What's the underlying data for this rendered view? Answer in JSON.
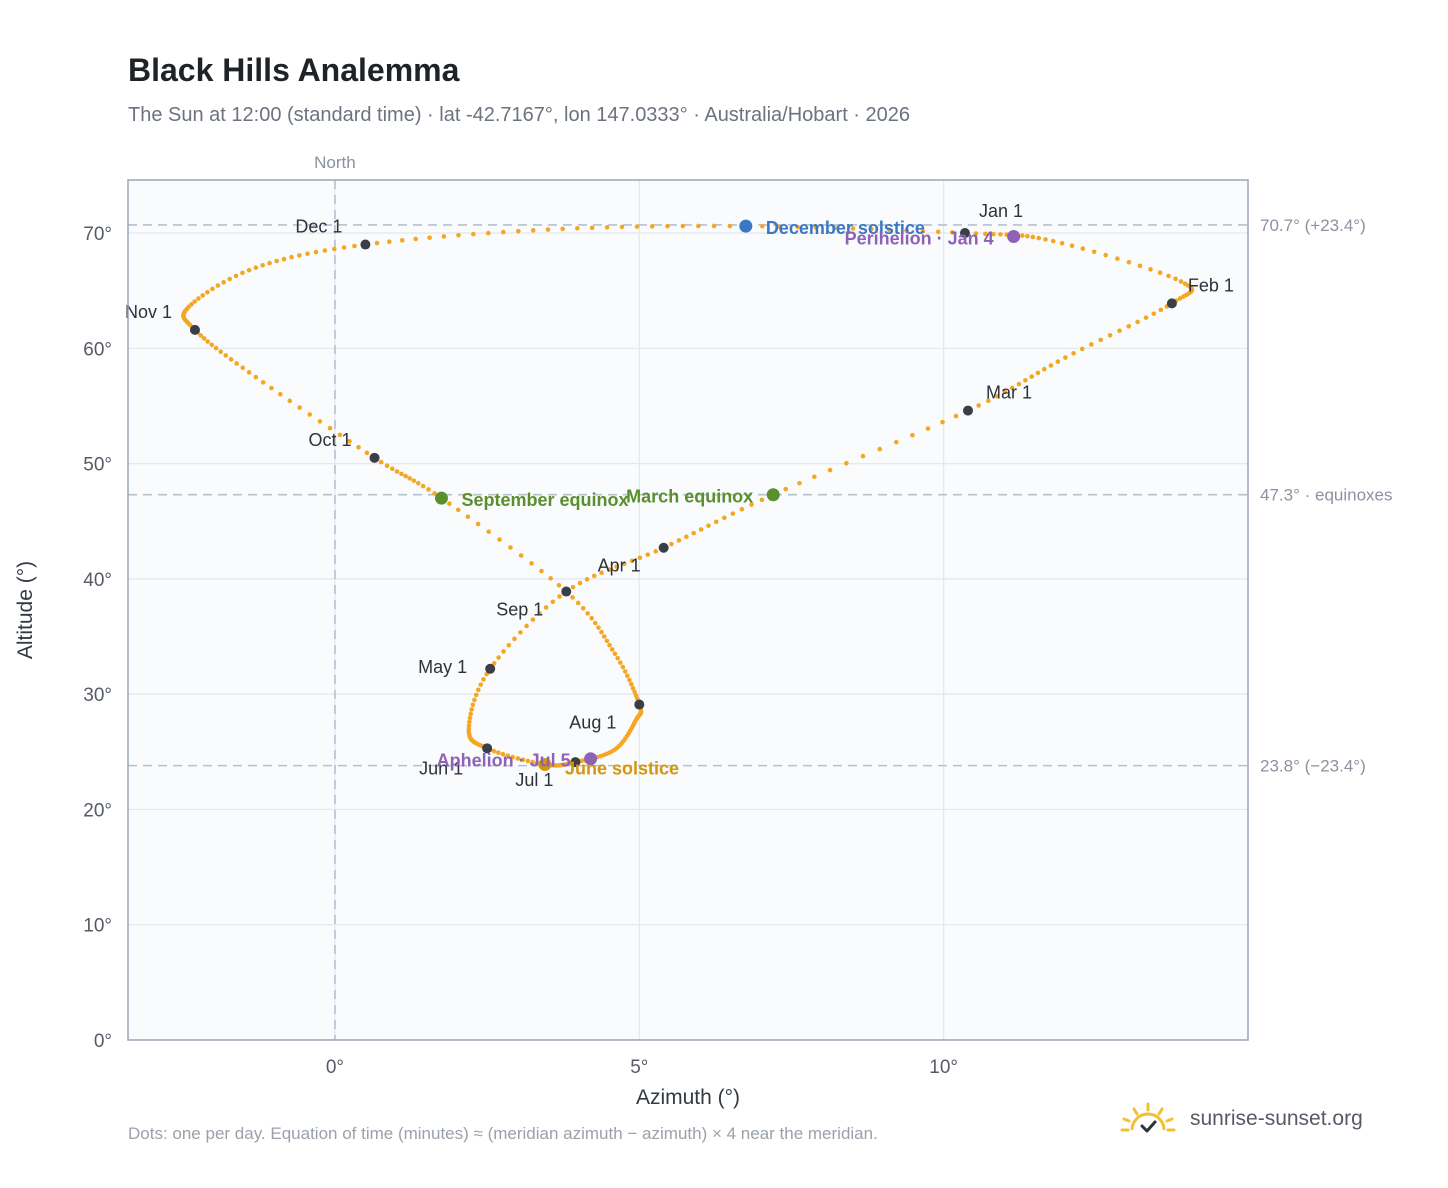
{
  "title": "Black Hills Analemma",
  "subtitle": "The Sun at 12:00 (standard time) · lat -42.7167°, lon 147.0333° · Australia/Hobart · 2026",
  "footnote": "Dots: one per day. Equation of time (minutes) ≈ (meridian azimuth − azimuth) × 4 near the meridian.",
  "brand": {
    "name": "sunrise-sunset.org",
    "icon": "sun-check-icon"
  },
  "colors": {
    "path": "#f5a623",
    "month_marker": "#3a3f47",
    "december_solstice": "#3a78c3",
    "june_solstice": "#d4960f",
    "equinox": "#5b8f2e",
    "apsis": "#8e63b5",
    "reference_line": "#b4c1cf",
    "plot_bg": "#f9fbfd",
    "grid": "#e3e8ee"
  },
  "chart_data": {
    "type": "scatter",
    "xlabel": "Azimuth (°)",
    "ylabel": "Altitude (°)",
    "xlim": [
      -3.4,
      15.0
    ],
    "ylim": [
      0,
      74.6
    ],
    "x_ticks": [
      0,
      5,
      10
    ],
    "x_tick_labels": [
      "0°",
      "5°",
      "10°"
    ],
    "y_ticks": [
      0,
      10,
      20,
      30,
      40,
      50,
      60,
      70
    ],
    "y_tick_labels": [
      "0°",
      "10°",
      "20°",
      "30°",
      "40°",
      "50°",
      "60°",
      "70°"
    ],
    "grid": true,
    "north_line": {
      "azimuth": 0,
      "label": "North"
    },
    "reference_lines": [
      {
        "altitude": 70.7,
        "label": "70.7° (+23.4°)"
      },
      {
        "altitude": 47.3,
        "label": "47.3° · equinoxes"
      },
      {
        "altitude": 23.8,
        "label": "23.8° (−23.4°)"
      }
    ],
    "series_note": "one dot per day",
    "monthly_path": [
      {
        "x": 10.35,
        "y": 70.0
      },
      {
        "x": 11.8,
        "y": 69.3
      },
      {
        "x": 13.9,
        "y": 65.8
      },
      {
        "x": 13.75,
        "y": 63.9
      },
      {
        "x": 12.0,
        "y": 59.2
      },
      {
        "x": 10.4,
        "y": 54.6
      },
      {
        "x": 7.2,
        "y": 47.3
      },
      {
        "x": 5.4,
        "y": 42.7
      },
      {
        "x": 3.8,
        "y": 38.9
      },
      {
        "x": 2.55,
        "y": 32.2
      },
      {
        "x": 2.2,
        "y": 27.0
      },
      {
        "x": 2.5,
        "y": 25.3
      },
      {
        "x": 3.45,
        "y": 23.9
      },
      {
        "x": 3.95,
        "y": 24.1
      },
      {
        "x": 4.6,
        "y": 25.2
      },
      {
        "x": 4.95,
        "y": 27.8
      },
      {
        "x": 5.0,
        "y": 29.1
      },
      {
        "x": 4.6,
        "y": 33.5
      },
      {
        "x": 3.8,
        "y": 38.9
      },
      {
        "x": 1.75,
        "y": 47.0
      },
      {
        "x": 0.65,
        "y": 50.5
      },
      {
        "x": -1.3,
        "y": 57.5
      },
      {
        "x": -2.3,
        "y": 61.6
      },
      {
        "x": -2.4,
        "y": 63.6
      },
      {
        "x": -1.3,
        "y": 67.0
      },
      {
        "x": 0.5,
        "y": 69.0
      },
      {
        "x": 3.5,
        "y": 70.3
      },
      {
        "x": 6.75,
        "y": 70.6
      },
      {
        "x": 10.35,
        "y": 70.0
      }
    ],
    "month_markers": [
      {
        "label": "Jan 1",
        "x": 10.35,
        "y": 70.0
      },
      {
        "label": "Feb 1",
        "x": 13.75,
        "y": 63.9
      },
      {
        "label": "Mar 1",
        "x": 10.4,
        "y": 54.6
      },
      {
        "label": "Apr 1",
        "x": 5.4,
        "y": 42.7
      },
      {
        "label": "May 1",
        "x": 2.55,
        "y": 32.2
      },
      {
        "label": "Jun 1",
        "x": 2.5,
        "y": 25.3
      },
      {
        "label": "Jul 1",
        "x": 3.95,
        "y": 24.1
      },
      {
        "label": "Aug 1",
        "x": 5.0,
        "y": 29.1
      },
      {
        "label": "Sep 1",
        "x": 3.8,
        "y": 38.9
      },
      {
        "label": "Oct 1",
        "x": 0.65,
        "y": 50.5
      },
      {
        "label": "Nov 1",
        "x": -2.3,
        "y": 61.6
      },
      {
        "label": "Dec 1",
        "x": 0.5,
        "y": 69.0
      }
    ],
    "events": [
      {
        "label": "December solstice",
        "x": 6.75,
        "y": 70.6,
        "kind": "december_solstice"
      },
      {
        "label": "Perihelion · Jan 4",
        "x": 11.15,
        "y": 69.7,
        "kind": "apsis"
      },
      {
        "label": "March equinox",
        "x": 7.2,
        "y": 47.3,
        "kind": "equinox"
      },
      {
        "label": "September equinox",
        "x": 1.75,
        "y": 47.0,
        "kind": "equinox"
      },
      {
        "label": "June solstice",
        "x": 3.45,
        "y": 23.9,
        "kind": "june_solstice"
      },
      {
        "label": "Aphelion · Jul 5",
        "x": 4.2,
        "y": 24.4,
        "kind": "apsis"
      }
    ]
  }
}
